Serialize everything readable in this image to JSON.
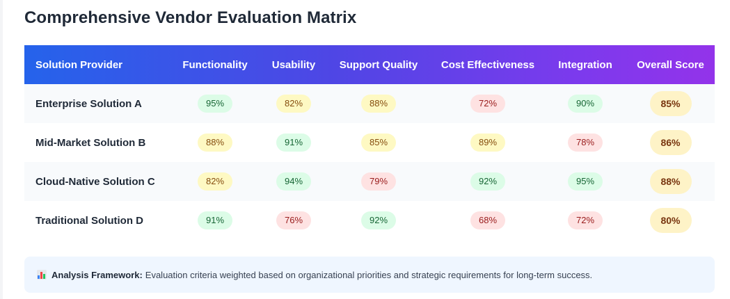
{
  "title": "Comprehensive Vendor Evaluation Matrix",
  "columns": [
    "Solution Provider",
    "Functionality",
    "Usability",
    "Support Quality",
    "Cost Effectiveness",
    "Integration",
    "Overall Score"
  ],
  "rows": [
    {
      "provider": "Enterprise Solution A",
      "scores": [
        {
          "v": "95%",
          "level": "green"
        },
        {
          "v": "82%",
          "level": "yellow"
        },
        {
          "v": "88%",
          "level": "yellow"
        },
        {
          "v": "72%",
          "level": "red"
        },
        {
          "v": "90%",
          "level": "green"
        }
      ],
      "overall": "85%"
    },
    {
      "provider": "Mid-Market Solution B",
      "scores": [
        {
          "v": "88%",
          "level": "yellow"
        },
        {
          "v": "91%",
          "level": "green"
        },
        {
          "v": "85%",
          "level": "yellow"
        },
        {
          "v": "89%",
          "level": "yellow"
        },
        {
          "v": "78%",
          "level": "red"
        }
      ],
      "overall": "86%"
    },
    {
      "provider": "Cloud-Native Solution C",
      "scores": [
        {
          "v": "82%",
          "level": "yellow"
        },
        {
          "v": "94%",
          "level": "green"
        },
        {
          "v": "79%",
          "level": "red"
        },
        {
          "v": "92%",
          "level": "green"
        },
        {
          "v": "95%",
          "level": "green"
        }
      ],
      "overall": "88%"
    },
    {
      "provider": "Traditional Solution D",
      "scores": [
        {
          "v": "91%",
          "level": "green"
        },
        {
          "v": "76%",
          "level": "red"
        },
        {
          "v": "92%",
          "level": "green"
        },
        {
          "v": "68%",
          "level": "red"
        },
        {
          "v": "72%",
          "level": "red"
        }
      ],
      "overall": "80%"
    }
  ],
  "note": {
    "icon": "bar-chart-icon",
    "label": "Analysis Framework:",
    "text": "Evaluation criteria weighted based on organizational priorities and strategic requirements for long-term success."
  },
  "colors": {
    "header_gradient_start": "#2563eb",
    "header_gradient_end": "#9333ea",
    "green_bg": "#dcfce7",
    "yellow_bg": "#fef9c3",
    "red_bg": "#fee2e2",
    "overall_bg": "#fef3c7"
  }
}
